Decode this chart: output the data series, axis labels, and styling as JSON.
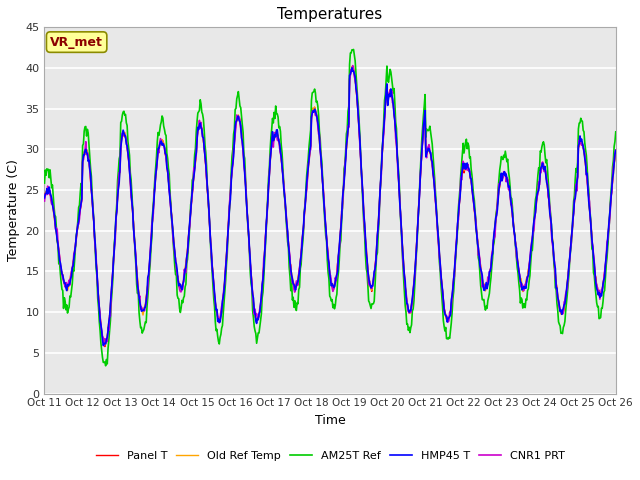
{
  "title": "Temperatures",
  "xlabel": "Time",
  "ylabel": "Temperature (C)",
  "ylim": [
    0,
    45
  ],
  "yticks": [
    0,
    5,
    10,
    15,
    20,
    25,
    30,
    35,
    40,
    45
  ],
  "xtick_labels": [
    "Oct 11",
    "Oct 12",
    "Oct 13",
    "Oct 14",
    "Oct 15",
    "Oct 16",
    "Oct 17",
    "Oct 18",
    "Oct 19",
    "Oct 20",
    "Oct 21",
    "Oct 22",
    "Oct 23",
    "Oct 24",
    "Oct 25",
    "Oct 26"
  ],
  "annotation": "VR_met",
  "annotation_color": "#8B0000",
  "annotation_bg": "#FFFF99",
  "line_colors": [
    "#FF0000",
    "#FFA500",
    "#00CC00",
    "#0000FF",
    "#CC00CC"
  ],
  "line_labels": [
    "Panel T",
    "Old Ref Temp",
    "AM25T Ref",
    "HMP45 T",
    "CNR1 PRT"
  ],
  "line_widths": [
    1.0,
    1.0,
    1.2,
    1.2,
    1.2
  ],
  "fig_bg": "#FFFFFF",
  "plot_bg": "#E8E8E8",
  "grid_color": "#FFFFFF",
  "figsize": [
    6.4,
    4.8
  ],
  "dpi": 100,
  "day_peaks": [
    25,
    30,
    32,
    31,
    33,
    34,
    32,
    35,
    40,
    37,
    30,
    28,
    27,
    28,
    31
  ],
  "day_troughs": [
    13,
    6,
    10,
    13,
    9,
    9,
    13,
    13,
    13,
    10,
    9,
    13,
    13,
    10,
    12
  ]
}
